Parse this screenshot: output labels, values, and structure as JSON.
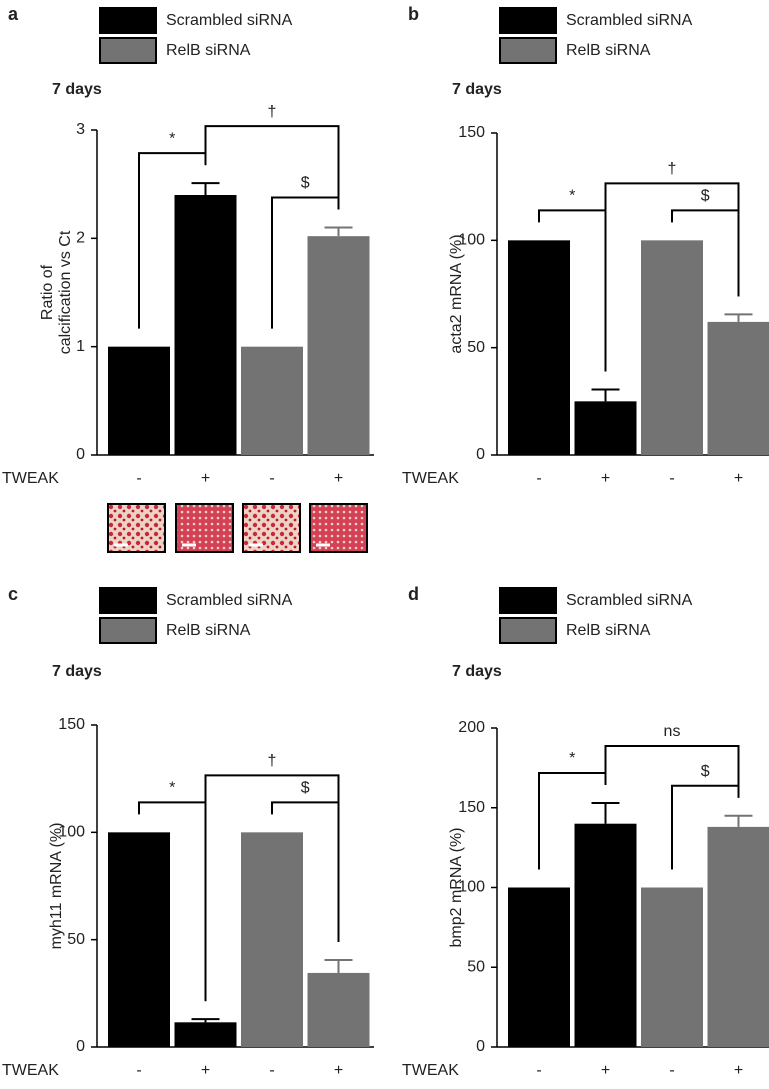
{
  "chart_data": [
    {
      "type": "bar",
      "panel": "a",
      "subtitle": "7 days",
      "ylabel": [
        "Ratio of",
        "calcification vs Ct"
      ],
      "xlabel": "TWEAK",
      "categories": [
        "-",
        "+",
        "-",
        "+"
      ],
      "series": [
        {
          "name": "Scrambled siRNA",
          "color": "#000000",
          "values": [
            1,
            2.4,
            null,
            null
          ],
          "errors": [
            null,
            0.11,
            null,
            null
          ]
        },
        {
          "name": "RelB siRNA",
          "color": "#737373",
          "values": [
            null,
            null,
            1,
            2.02
          ],
          "errors": [
            null,
            null,
            null,
            0.08
          ]
        }
      ],
      "ylim": [
        0,
        3
      ],
      "yticks": [
        0,
        1,
        2,
        3
      ],
      "annotations": [
        {
          "label": "*",
          "between": [
            0,
            1
          ]
        },
        {
          "label": "†",
          "between": [
            1,
            3
          ]
        },
        {
          "label": "$",
          "between": [
            2,
            3
          ]
        }
      ]
    },
    {
      "type": "bar",
      "panel": "b",
      "subtitle": "7 days",
      "ylabel": [
        "acta2 mRNA (%)"
      ],
      "xlabel": "TWEAK",
      "categories": [
        "-",
        "+",
        "-",
        "+"
      ],
      "series": [
        {
          "name": "Scrambled siRNA",
          "color": "#000000",
          "values": [
            100,
            25,
            null,
            null
          ],
          "errors": [
            null,
            5.5,
            null,
            null
          ]
        },
        {
          "name": "RelB siRNA",
          "color": "#737373",
          "values": [
            null,
            null,
            100,
            62
          ],
          "errors": [
            null,
            null,
            null,
            3.5
          ]
        }
      ],
      "ylim": [
        0,
        150
      ],
      "yticks": [
        0,
        50,
        100,
        150
      ],
      "annotations": [
        {
          "label": "*",
          "between": [
            0,
            1
          ]
        },
        {
          "label": "†",
          "between": [
            1,
            3
          ]
        },
        {
          "label": "$",
          "between": [
            2,
            3
          ]
        }
      ]
    },
    {
      "type": "bar",
      "panel": "c",
      "subtitle": "7 days",
      "ylabel": [
        "myh11 mRNA (%)"
      ],
      "xlabel": "TWEAK",
      "categories": [
        "-",
        "+",
        "-",
        "+"
      ],
      "series": [
        {
          "name": "Scrambled siRNA",
          "color": "#000000",
          "values": [
            100,
            11.5,
            null,
            null
          ],
          "errors": [
            null,
            1.5,
            null,
            null
          ]
        },
        {
          "name": "RelB siRNA",
          "color": "#737373",
          "values": [
            null,
            null,
            100,
            34.5
          ],
          "errors": [
            null,
            null,
            null,
            6
          ]
        }
      ],
      "ylim": [
        0,
        150
      ],
      "yticks": [
        0,
        50,
        100,
        150
      ],
      "annotations": [
        {
          "label": "*",
          "between": [
            0,
            1
          ]
        },
        {
          "label": "†",
          "between": [
            1,
            3
          ]
        },
        {
          "label": "$",
          "between": [
            2,
            3
          ]
        }
      ]
    },
    {
      "type": "bar",
      "panel": "d",
      "subtitle": "7 days",
      "ylabel": [
        "bmp2 mRNA (%)"
      ],
      "xlabel": "TWEAK",
      "categories": [
        "-",
        "+",
        "-",
        "+"
      ],
      "series": [
        {
          "name": "Scrambled siRNA",
          "color": "#000000",
          "values": [
            100,
            140,
            null,
            null
          ],
          "errors": [
            null,
            13,
            null,
            null
          ]
        },
        {
          "name": "RelB siRNA",
          "color": "#737373",
          "values": [
            null,
            null,
            100,
            138
          ],
          "errors": [
            null,
            null,
            null,
            7
          ]
        }
      ],
      "ylim": [
        0,
        200
      ],
      "yticks": [
        0,
        50,
        100,
        150,
        200
      ],
      "annotations": [
        {
          "label": "*",
          "between": [
            0,
            1
          ]
        },
        {
          "label": "ns",
          "between": [
            1,
            3
          ]
        },
        {
          "label": "$",
          "between": [
            2,
            3
          ]
        }
      ]
    }
  ]
}
